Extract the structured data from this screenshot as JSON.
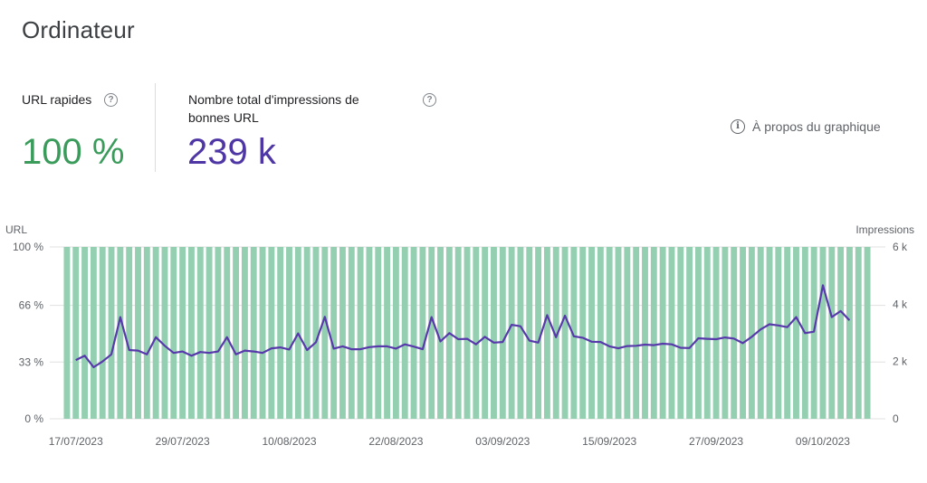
{
  "page": {
    "title": "Ordinateur",
    "about_chart_label": "À propos du graphique",
    "help_glyph": "?",
    "info_glyph": "i"
  },
  "metrics": {
    "fast_urls": {
      "label": "URL rapides",
      "value": "100 %",
      "color": "#3a9b5b"
    },
    "impressions": {
      "label_line1": "Nombre total d'impressions de",
      "label_line2": "bonnes URL",
      "value": "239 k",
      "color": "#4f36a5"
    }
  },
  "colors": {
    "bar": "#93cfb0",
    "line": "#5839ab",
    "grid": "#e0e0e0"
  },
  "chart_data": {
    "type": "bar",
    "title": "",
    "ylabel_left": "URL",
    "ylabel_right": "Impressions",
    "y_left_ticks": [
      "0 %",
      "33 %",
      "66 %",
      "100 %"
    ],
    "y_left_tick_values": [
      0,
      33,
      66,
      100
    ],
    "ylim_left": [
      0,
      100
    ],
    "y_right_ticks": [
      "0",
      "2 k",
      "4 k",
      "6 k"
    ],
    "y_right_tick_values": [
      0,
      2000,
      4000,
      6000
    ],
    "ylim_right": [
      0,
      6000
    ],
    "x_ticks": [
      "17/07/2023",
      "29/07/2023",
      "10/08/2023",
      "22/08/2023",
      "03/09/2023",
      "15/09/2023",
      "27/09/2023",
      "09/10/2023"
    ],
    "x_tick_indices": [
      1,
      13,
      25,
      37,
      49,
      61,
      73,
      85
    ],
    "series": [
      {
        "name": "URL rapides",
        "kind": "bar",
        "axis": "left",
        "values": [
          100,
          100,
          100,
          100,
          100,
          100,
          100,
          100,
          100,
          100,
          100,
          100,
          100,
          100,
          100,
          100,
          100,
          100,
          100,
          100,
          100,
          100,
          100,
          100,
          100,
          100,
          100,
          100,
          100,
          100,
          100,
          100,
          100,
          100,
          100,
          100,
          100,
          100,
          100,
          100,
          100,
          100,
          100,
          100,
          100,
          100,
          100,
          100,
          100,
          100,
          100,
          100,
          100,
          100,
          100,
          100,
          100,
          100,
          100,
          100,
          100,
          100,
          100,
          100,
          100,
          100,
          100,
          100,
          100,
          100,
          100,
          100,
          100,
          100,
          100,
          100,
          100,
          100,
          100,
          100,
          100,
          100,
          100,
          100,
          100,
          100,
          100,
          100,
          100,
          100,
          100
        ]
      },
      {
        "name": "Impressions",
        "kind": "line",
        "axis": "right",
        "start_index": 1,
        "values": [
          2050,
          2200,
          1800,
          2000,
          2250,
          3550,
          2400,
          2380,
          2250,
          2850,
          2550,
          2300,
          2350,
          2200,
          2330,
          2300,
          2350,
          2850,
          2250,
          2380,
          2350,
          2300,
          2460,
          2490,
          2420,
          2980,
          2400,
          2670,
          3560,
          2450,
          2530,
          2430,
          2430,
          2500,
          2530,
          2530,
          2450,
          2600,
          2520,
          2430,
          3550,
          2700,
          2990,
          2780,
          2790,
          2600,
          2860,
          2660,
          2680,
          3280,
          3230,
          2730,
          2660,
          3620,
          2850,
          3600,
          2880,
          2830,
          2690,
          2680,
          2530,
          2460,
          2540,
          2550,
          2590,
          2570,
          2620,
          2600,
          2480,
          2470,
          2810,
          2790,
          2780,
          2840,
          2800,
          2640,
          2860,
          3120,
          3300,
          3260,
          3200,
          3550,
          2990,
          3040,
          4660,
          3550,
          3760,
          3440
        ]
      }
    ]
  }
}
